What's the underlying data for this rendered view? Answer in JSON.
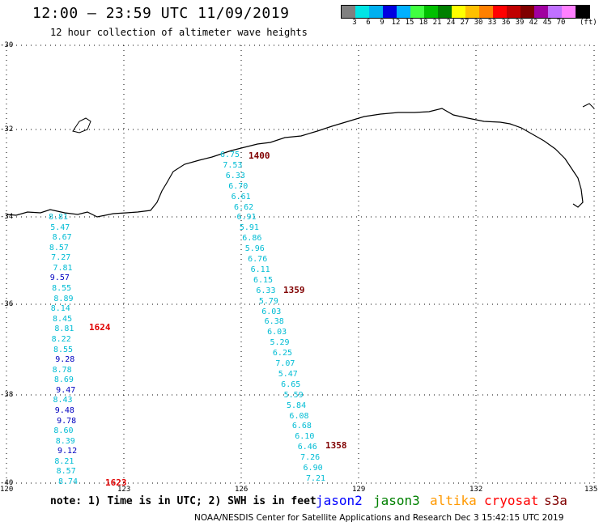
{
  "title": "12:00 – 23:59 UTC 11/09/2019",
  "subtitle": "12 hour collection of altimeter wave heights",
  "colorbar": {
    "colors": [
      "#808080",
      "#00e5e5",
      "#00b0f0",
      "#0000e0",
      "#00b0ff",
      "#40ff40",
      "#00c000",
      "#008000",
      "#ffff00",
      "#ffc000",
      "#ff8000",
      "#ff0000",
      "#c00000",
      "#800000",
      "#a000a0",
      "#c070ff",
      "#ff80ff",
      "#000000"
    ],
    "labels": [
      "3",
      "6",
      "9",
      "12",
      "15",
      "18",
      "21",
      "24",
      "27",
      "30",
      "33",
      "36",
      "39",
      "42",
      "45",
      "70"
    ],
    "unit": "(ft)"
  },
  "axes": {
    "lat_labels": [
      "-30",
      "-32",
      "-34",
      "-36",
      "-38",
      "-40"
    ],
    "lon_labels": [
      "120",
      "123",
      "126",
      "129",
      "132",
      "135"
    ]
  },
  "tracks": [
    {
      "color": "#00bcd4",
      "values": [
        "8.81",
        "5.47",
        "8.67",
        "8.57",
        "7.27",
        "7.81",
        "9.57",
        "8.55",
        "8.89",
        "8.14",
        "8.45",
        "8.81",
        "8.22",
        "8.55",
        "9.28",
        "8.78",
        "8.69",
        "9.47",
        "8.43",
        "9.48",
        "9.78",
        "8.60",
        "8.39",
        "9.12",
        "8.21",
        "8.57",
        "8.74"
      ],
      "times": [
        "1624",
        "1623"
      ]
    },
    {
      "color": "#00bcd4",
      "values": [
        "6.75",
        "7.53",
        "6.33",
        "6.70",
        "6.61",
        "6.62",
        "6.91",
        "5.91",
        "6.86",
        "5.96",
        "6.76",
        "6.11",
        "6.15",
        "6.33",
        "5.79",
        "6.03",
        "6.38",
        "6.03",
        "5.29",
        "6.25",
        "7.07",
        "5.47",
        "6.65",
        "5.59",
        "5.84",
        "6.08",
        "6.68",
        "6.10",
        "6.46",
        "7.26",
        "6.90",
        "7.21"
      ],
      "times": [
        "1400",
        "1359",
        "1358"
      ]
    }
  ],
  "note": "note: 1) Time is in UTC; 2) SWH is in feet",
  "satellites": [
    {
      "name": "jason2",
      "color": "#0000ff"
    },
    {
      "name": "jason3",
      "color": "#008000"
    },
    {
      "name": "altika",
      "color": "#ff9900"
    },
    {
      "name": "cryosat",
      "color": "#ff0000"
    },
    {
      "name": "s3a",
      "color": "#800000"
    }
  ],
  "footer": "NOAA/NESDIS Center for Satellite Applications and Research   Dec  3 15:42:15 UTC 2019"
}
